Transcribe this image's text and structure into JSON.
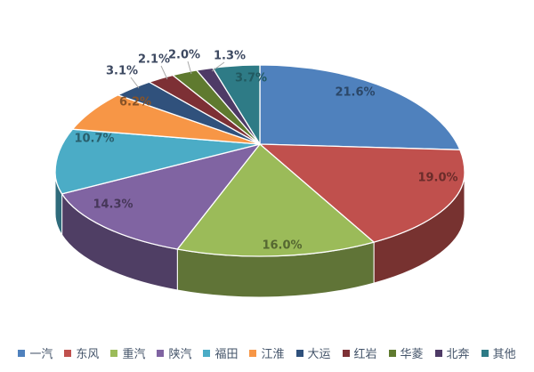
{
  "chart_data": {
    "type": "pie",
    "style": "3d-pie",
    "title": "",
    "background": "#ffffff",
    "start_angle_deg": 0,
    "direction": "clockwise",
    "categories": [
      "一汽",
      "东风",
      "重汽",
      "陕汽",
      "福田",
      "江淮",
      "大运",
      "红岩",
      "华菱",
      "北奔",
      "其他"
    ],
    "values": [
      21.6,
      19.0,
      16.0,
      14.3,
      10.7,
      6.2,
      3.1,
      2.1,
      2.0,
      1.3,
      3.7
    ],
    "percent_labels": [
      "21.6%",
      "19.0%",
      "16.0%",
      "14.3%",
      "10.7%",
      "6.2%",
      "3.1%",
      "2.1%",
      "2.0%",
      "1.3%",
      "3.7%"
    ],
    "colors": [
      "#4F81BD",
      "#C0504D",
      "#9BBB59",
      "#8064A2",
      "#4BACC6",
      "#F79646",
      "#30517C",
      "#7D3035",
      "#5F7A2F",
      "#4E3A66",
      "#2E7B86"
    ],
    "outside_label_color": "#3D4961",
    "leader_line_color": "#A8A8A8",
    "legend_position": "bottom",
    "legend_text_color": "#44546A",
    "notes": "last slice (其他 3.7%) label rendered low-contrast on the slice"
  }
}
